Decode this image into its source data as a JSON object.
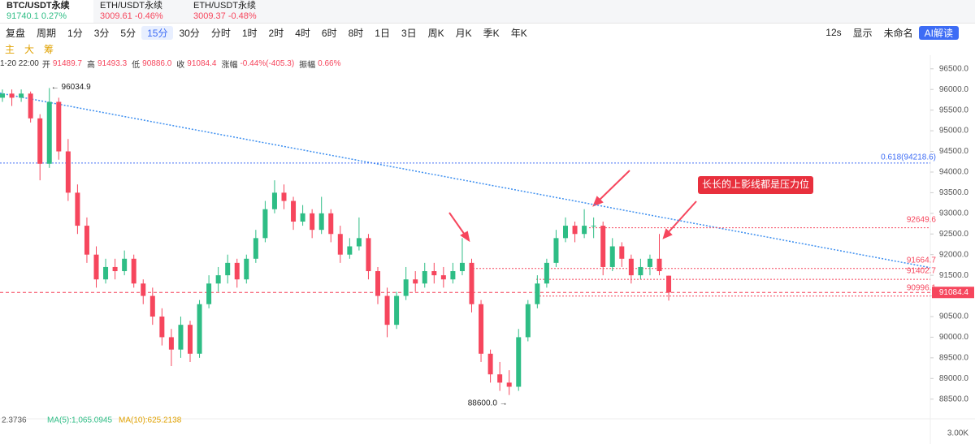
{
  "tabs": [
    {
      "name": "BTC/USDT永续",
      "price": "91740.1",
      "change": "0.27%"
    },
    {
      "name": "ETH/USDT永续",
      "price": "3009.61",
      "change": "-0.46%"
    },
    {
      "name": "ETH/USDT永续",
      "price": "3009.37",
      "change": "-0.48%"
    }
  ],
  "toolbar": {
    "replay": "复盘",
    "period": "周期",
    "intervals": [
      "1分",
      "3分",
      "5分",
      "15分",
      "30分",
      "分时",
      "1时",
      "2时",
      "4时",
      "6时",
      "8时",
      "1日",
      "3日",
      "周K",
      "月K",
      "季K",
      "年K"
    ],
    "active_interval": "15分",
    "timer": "12s",
    "display": "显示",
    "layout": "未命名",
    "ai": "AI解读"
  },
  "indicators": [
    "主",
    "大",
    "筹"
  ],
  "info": {
    "time": "1-20 22:00",
    "items": [
      {
        "label": "开",
        "value": "91489.7"
      },
      {
        "label": "高",
        "value": "91493.3"
      },
      {
        "label": "低",
        "value": "90886.0"
      },
      {
        "label": "收",
        "value": "91084.4"
      },
      {
        "label": "涨幅",
        "value": "-0.44%(-405.3)"
      },
      {
        "label": "振幅",
        "value": "0.66%"
      }
    ]
  },
  "volume_info": {
    "value": "2.3736",
    "ma5": "MA(5):1,065.0945",
    "ma10": "MA(10):625.2138",
    "axis_label": "3.00K"
  },
  "chart_data": {
    "type": "candlestick",
    "up_color": "#2ebd85",
    "down_color": "#f6465d",
    "ylim": [
      88180,
      96830
    ],
    "yticks": [
      {
        "value": 88500,
        "label": "88500.0"
      },
      {
        "value": 89000,
        "label": "89000.0"
      },
      {
        "value": 89500,
        "label": "89500.0"
      },
      {
        "value": 90000,
        "label": "90000.0"
      },
      {
        "value": 90500,
        "label": "90500.0"
      },
      {
        "value": 91000,
        "label": "91000.0"
      },
      {
        "value": 91500,
        "label": "91500.0"
      },
      {
        "value": 92000,
        "label": "92000.0"
      },
      {
        "value": 92500,
        "label": "92500.0"
      },
      {
        "value": 93000,
        "label": "93000.0"
      },
      {
        "value": 93500,
        "label": "93500.0"
      },
      {
        "value": 94000,
        "label": "94000.0"
      },
      {
        "value": 94500,
        "label": "94500.0"
      },
      {
        "value": 95000,
        "label": "95000.0"
      },
      {
        "value": 95500,
        "label": "95500.0"
      },
      {
        "value": 96000,
        "label": "96000.0"
      },
      {
        "value": 96500,
        "label": "96500.0"
      }
    ],
    "candles": [
      [
        95800,
        96000,
        95700,
        95900
      ],
      [
        95900,
        96000,
        95600,
        95800
      ],
      [
        95800,
        96000,
        95700,
        95900
      ],
      [
        95900,
        95950,
        95200,
        95300
      ],
      [
        95300,
        95400,
        93800,
        94200
      ],
      [
        94200,
        96034.9,
        94100,
        95700
      ],
      [
        95700,
        95800,
        94300,
        94500
      ],
      [
        94500,
        94800,
        93300,
        93500
      ],
      [
        93500,
        93700,
        92500,
        92700
      ],
      [
        92700,
        92900,
        91800,
        92000
      ],
      [
        92000,
        92200,
        91200,
        91400
      ],
      [
        91400,
        91900,
        91300,
        91700
      ],
      [
        91700,
        91900,
        91400,
        91600
      ],
      [
        91600,
        92100,
        91500,
        91900
      ],
      [
        91900,
        92000,
        91200,
        91300
      ],
      [
        91300,
        91400,
        90800,
        91000
      ],
      [
        91000,
        91200,
        90300,
        90500
      ],
      [
        90500,
        90700,
        89800,
        90000
      ],
      [
        90000,
        90200,
        89300,
        89700
      ],
      [
        89700,
        90500,
        89500,
        90300
      ],
      [
        90300,
        90400,
        89400,
        89600
      ],
      [
        89600,
        90900,
        89500,
        90800
      ],
      [
        90800,
        91500,
        90700,
        91300
      ],
      [
        91300,
        91700,
        91100,
        91500
      ],
      [
        91500,
        92000,
        91300,
        91800
      ],
      [
        91800,
        91900,
        91200,
        91400
      ],
      [
        91400,
        92000,
        91300,
        91900
      ],
      [
        91900,
        92600,
        91800,
        92400
      ],
      [
        92400,
        93300,
        92300,
        93100
      ],
      [
        93100,
        93800,
        93000,
        93500
      ],
      [
        93500,
        93700,
        93100,
        93300
      ],
      [
        93300,
        93400,
        92600,
        92800
      ],
      [
        92800,
        93200,
        92700,
        93000
      ],
      [
        93000,
        93100,
        92400,
        92600
      ],
      [
        92600,
        93400,
        92500,
        93000
      ],
      [
        93000,
        93100,
        92300,
        92500
      ],
      [
        92500,
        92700,
        91800,
        92000
      ],
      [
        92000,
        92400,
        91900,
        92200
      ],
      [
        92200,
        92900,
        92100,
        92400
      ],
      [
        92400,
        92500,
        91400,
        91600
      ],
      [
        91600,
        91700,
        90800,
        91000
      ],
      [
        91000,
        91200,
        90000,
        90300
      ],
      [
        90300,
        91100,
        90200,
        91000
      ],
      [
        91000,
        91700,
        90900,
        91400
      ],
      [
        91400,
        91600,
        91100,
        91300
      ],
      [
        91300,
        91800,
        91200,
        91600
      ],
      [
        91600,
        91800,
        91300,
        91500
      ],
      [
        91500,
        91700,
        91200,
        91400
      ],
      [
        91400,
        91800,
        91300,
        91600
      ],
      [
        91600,
        92400,
        91500,
        91800
      ],
      [
        91800,
        91900,
        90600,
        90800
      ],
      [
        90800,
        90900,
        89400,
        89600
      ],
      [
        89600,
        89700,
        88900,
        89100
      ],
      [
        89100,
        89400,
        88700,
        88900
      ],
      [
        88900,
        89200,
        88600,
        88800
      ],
      [
        88800,
        90200,
        88700,
        90000
      ],
      [
        90000,
        90900,
        89900,
        90800
      ],
      [
        90800,
        91500,
        90700,
        91300
      ],
      [
        91300,
        91900,
        91200,
        91800
      ],
      [
        91800,
        92600,
        91700,
        92400
      ],
      [
        92400,
        92900,
        92300,
        92700
      ],
      [
        92700,
        92800,
        92300,
        92500
      ],
      [
        92500,
        93100,
        92400,
        92700
      ],
      [
        92700,
        92900,
        92400,
        92700
      ],
      [
        92700,
        92800,
        91500,
        91700
      ],
      [
        91700,
        92400,
        91600,
        92200
      ],
      [
        92200,
        92300,
        91700,
        91900
      ],
      [
        91900,
        92000,
        91300,
        91500
      ],
      [
        91500,
        91900,
        91400,
        91700
      ],
      [
        91700,
        92000,
        91500,
        91900
      ],
      [
        91900,
        92500,
        91500,
        91600
      ],
      [
        91489.7,
        91493.3,
        90886.0,
        91084.4
      ]
    ],
    "max_marker": {
      "value": 96034.9,
      "label": "← 96034.9"
    },
    "min_marker": {
      "value": 88600.0,
      "label": "88600.0 →"
    },
    "trendline": [
      95910,
      91684
    ],
    "fib_level": {
      "value": 94218.6,
      "label": "0.618(94218.6)"
    },
    "levels": [
      92649.6,
      91664.7,
      91402.7,
      90996.1
    ],
    "last_price": {
      "value": 91084.4,
      "label": "91084.4"
    },
    "annotation": "长长的上影线都是压力位"
  }
}
